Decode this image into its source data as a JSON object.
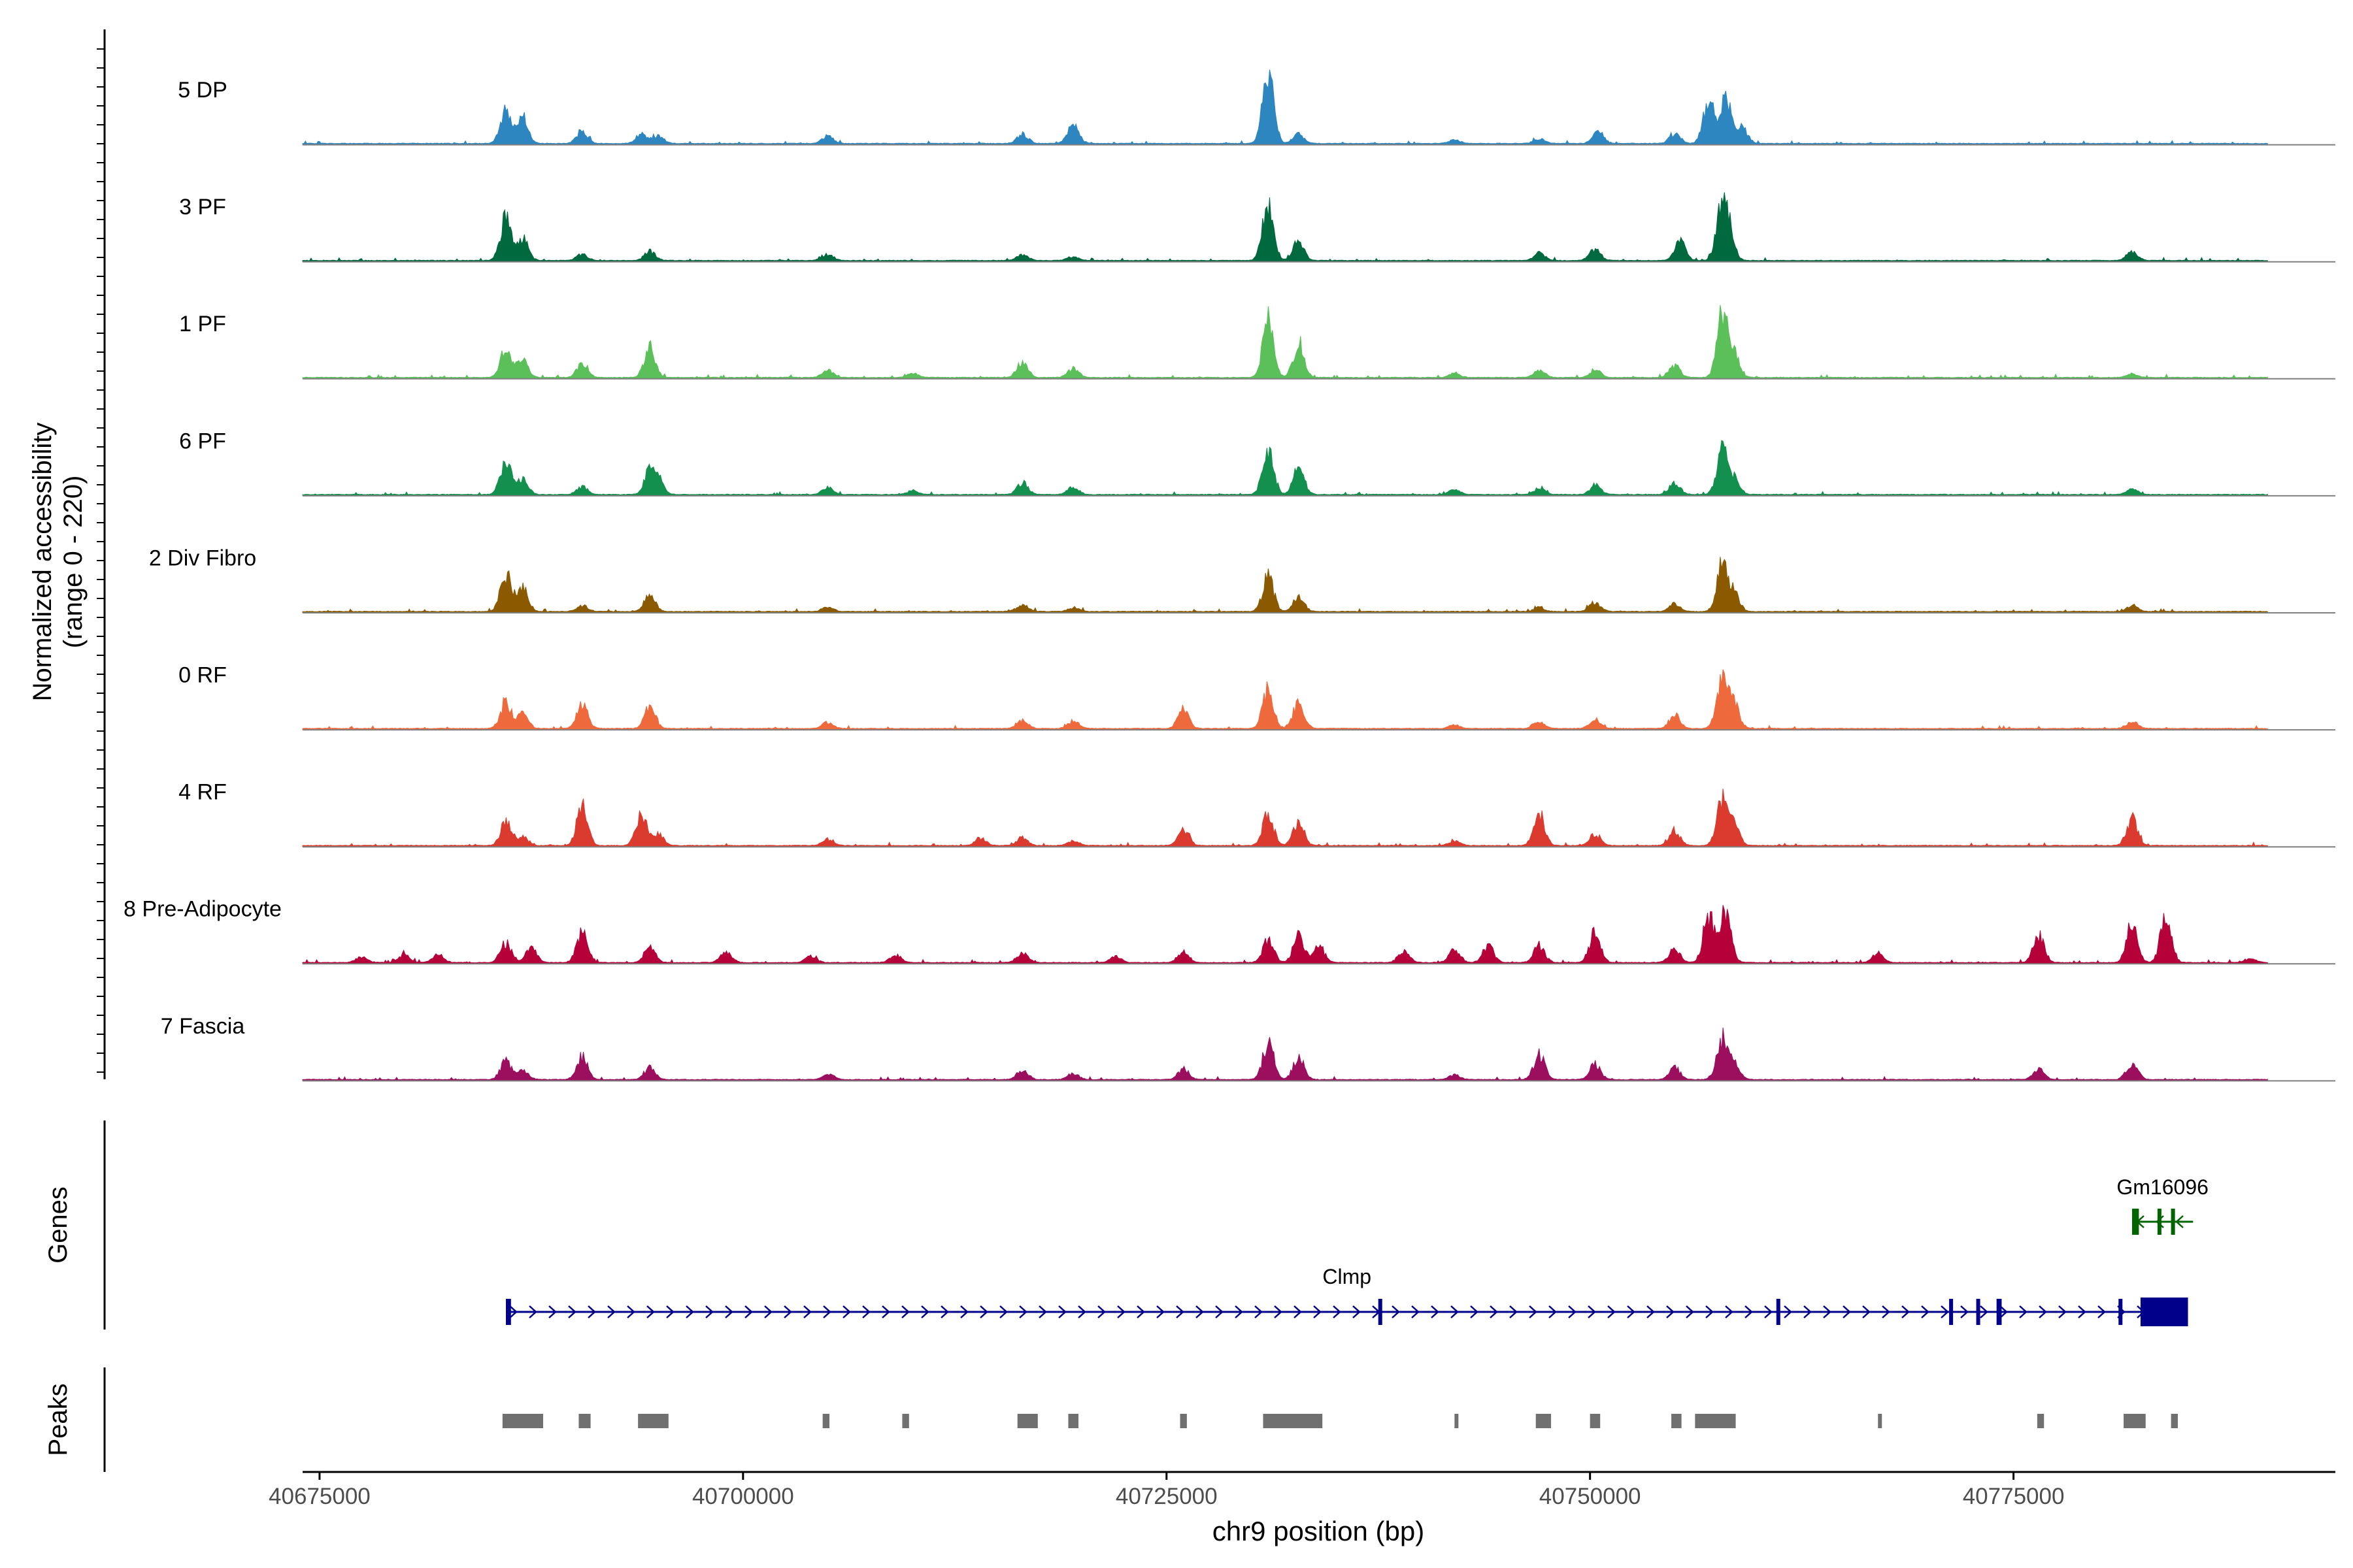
{
  "chart_data": {
    "type": "area",
    "title": "",
    "xlabel": "chr9 position (bp)",
    "ylabel_line1": "Normalized accessibility",
    "ylabel_line2": "(range 0 - 220)",
    "ylim": [
      0,
      220
    ],
    "xlim": [
      40674000,
      40794000
    ],
    "x_ticks": [
      40675000,
      40700000,
      40725000,
      40750000,
      40775000
    ],
    "x_tick_labels": [
      "40675000",
      "40700000",
      "40725000",
      "40750000",
      "40775000"
    ],
    "track_labels": {
      "genes": "Genes",
      "peaks": "Peaks"
    },
    "track_start": 40674000,
    "track_end": 40790000,
    "series": [
      {
        "name": "5 DP",
        "color": "#2E86C1",
        "seed": 11,
        "peaks": [
          [
            40686000,
            0.45
          ],
          [
            40687000,
            0.35
          ],
          [
            40690500,
            0.15
          ],
          [
            40694000,
            0.12
          ],
          [
            40695000,
            0.1
          ],
          [
            40705000,
            0.1
          ],
          [
            40716500,
            0.12
          ],
          [
            40719500,
            0.28
          ],
          [
            40731000,
            1.0
          ],
          [
            40732800,
            0.12
          ],
          [
            40742000,
            0.05
          ],
          [
            40747000,
            0.06
          ],
          [
            40750500,
            0.15
          ],
          [
            40755000,
            0.12
          ],
          [
            40757000,
            0.55
          ],
          [
            40758000,
            0.6
          ],
          [
            40759000,
            0.2
          ]
        ]
      },
      {
        "name": "3 PF",
        "color": "#00693E",
        "seed": 23,
        "peaks": [
          [
            40686000,
            0.55
          ],
          [
            40687000,
            0.3
          ],
          [
            40690500,
            0.08
          ],
          [
            40694500,
            0.12
          ],
          [
            40705000,
            0.08
          ],
          [
            40716500,
            0.08
          ],
          [
            40719500,
            0.05
          ],
          [
            40731000,
            0.75
          ],
          [
            40732800,
            0.25
          ],
          [
            40747000,
            0.1
          ],
          [
            40750300,
            0.15
          ],
          [
            40755300,
            0.25
          ],
          [
            40757800,
            0.7
          ],
          [
            40758200,
            0.3
          ],
          [
            40782000,
            0.12
          ]
        ]
      },
      {
        "name": "1 PF",
        "color": "#5CC05A",
        "seed": 31,
        "peaks": [
          [
            40686000,
            0.4
          ],
          [
            40687000,
            0.22
          ],
          [
            40690500,
            0.18
          ],
          [
            40694500,
            0.4
          ],
          [
            40705000,
            0.1
          ],
          [
            40710000,
            0.06
          ],
          [
            40716500,
            0.2
          ],
          [
            40719500,
            0.12
          ],
          [
            40731000,
            0.75
          ],
          [
            40732800,
            0.45
          ],
          [
            40742000,
            0.05
          ],
          [
            40747000,
            0.1
          ],
          [
            40750300,
            0.1
          ],
          [
            40755000,
            0.15
          ],
          [
            40757800,
            0.8
          ],
          [
            40758500,
            0.3
          ],
          [
            40782000,
            0.05
          ]
        ]
      },
      {
        "name": "6 PF",
        "color": "#14904E",
        "seed": 47,
        "peaks": [
          [
            40686000,
            0.45
          ],
          [
            40687000,
            0.2
          ],
          [
            40690500,
            0.1
          ],
          [
            40694500,
            0.3
          ],
          [
            40695000,
            0.18
          ],
          [
            40705000,
            0.1
          ],
          [
            40710000,
            0.05
          ],
          [
            40716500,
            0.15
          ],
          [
            40719500,
            0.1
          ],
          [
            40731000,
            0.6
          ],
          [
            40732800,
            0.35
          ],
          [
            40742000,
            0.06
          ],
          [
            40747000,
            0.08
          ],
          [
            40750300,
            0.12
          ],
          [
            40755000,
            0.15
          ],
          [
            40757800,
            0.6
          ],
          [
            40758500,
            0.2
          ],
          [
            40782000,
            0.08
          ]
        ]
      },
      {
        "name": "2 Div Fibro",
        "color": "#8B5A00",
        "seed": 53,
        "peaks": [
          [
            40686000,
            0.5
          ],
          [
            40687000,
            0.3
          ],
          [
            40690500,
            0.08
          ],
          [
            40694500,
            0.22
          ],
          [
            40705000,
            0.06
          ],
          [
            40716500,
            0.1
          ],
          [
            40719500,
            0.05
          ],
          [
            40731000,
            0.45
          ],
          [
            40732800,
            0.2
          ],
          [
            40747000,
            0.05
          ],
          [
            40750300,
            0.12
          ],
          [
            40755000,
            0.1
          ],
          [
            40757800,
            0.6
          ],
          [
            40758500,
            0.25
          ],
          [
            40782000,
            0.08
          ]
        ]
      },
      {
        "name": "0 RF",
        "color": "#EE6A3D",
        "seed": 61,
        "peaks": [
          [
            40686000,
            0.35
          ],
          [
            40687000,
            0.18
          ],
          [
            40690500,
            0.32
          ],
          [
            40694500,
            0.28
          ],
          [
            40705000,
            0.08
          ],
          [
            40716500,
            0.12
          ],
          [
            40719500,
            0.1
          ],
          [
            40726000,
            0.25
          ],
          [
            40731000,
            0.5
          ],
          [
            40732800,
            0.35
          ],
          [
            40742000,
            0.05
          ],
          [
            40747000,
            0.08
          ],
          [
            40750300,
            0.12
          ],
          [
            40755000,
            0.18
          ],
          [
            40757800,
            0.7
          ],
          [
            40758500,
            0.3
          ],
          [
            40782000,
            0.1
          ]
        ]
      },
      {
        "name": "4 RF",
        "color": "#DB3A2E",
        "seed": 71,
        "peaks": [
          [
            40686000,
            0.3
          ],
          [
            40687000,
            0.12
          ],
          [
            40690500,
            0.5
          ],
          [
            40694000,
            0.42
          ],
          [
            40695000,
            0.15
          ],
          [
            40705000,
            0.08
          ],
          [
            40714000,
            0.1
          ],
          [
            40716500,
            0.1
          ],
          [
            40719500,
            0.06
          ],
          [
            40726000,
            0.22
          ],
          [
            40731000,
            0.4
          ],
          [
            40732800,
            0.3
          ],
          [
            40742000,
            0.06
          ],
          [
            40747000,
            0.42
          ],
          [
            40750300,
            0.15
          ],
          [
            40755000,
            0.2
          ],
          [
            40757800,
            0.6
          ],
          [
            40758500,
            0.25
          ],
          [
            40782000,
            0.35
          ]
        ]
      },
      {
        "name": "8 Pre-Adipocyte",
        "color": "#B5003A",
        "seed": 83,
        "peaks": [
          [
            40677500,
            0.08
          ],
          [
            40680000,
            0.1
          ],
          [
            40682000,
            0.12
          ],
          [
            40686000,
            0.25
          ],
          [
            40687500,
            0.2
          ],
          [
            40690500,
            0.38
          ],
          [
            40694500,
            0.2
          ],
          [
            40699000,
            0.15
          ],
          [
            40704000,
            0.08
          ],
          [
            40709000,
            0.1
          ],
          [
            40716500,
            0.12
          ],
          [
            40722000,
            0.08
          ],
          [
            40726000,
            0.15
          ],
          [
            40731000,
            0.3
          ],
          [
            40732800,
            0.35
          ],
          [
            40734000,
            0.22
          ],
          [
            40739000,
            0.15
          ],
          [
            40742000,
            0.18
          ],
          [
            40744000,
            0.22
          ],
          [
            40747000,
            0.22
          ],
          [
            40750300,
            0.4
          ],
          [
            40755000,
            0.18
          ],
          [
            40757000,
            0.62
          ],
          [
            40758000,
            0.7
          ],
          [
            40767000,
            0.12
          ],
          [
            40776500,
            0.35
          ],
          [
            40782000,
            0.5
          ],
          [
            40784000,
            0.62
          ],
          [
            40789000,
            0.05
          ]
        ]
      },
      {
        "name": "7 Fascia",
        "color": "#9B0F5E",
        "seed": 97,
        "peaks": [
          [
            40686000,
            0.25
          ],
          [
            40687000,
            0.12
          ],
          [
            40690500,
            0.3
          ],
          [
            40694500,
            0.15
          ],
          [
            40705000,
            0.08
          ],
          [
            40716500,
            0.12
          ],
          [
            40719500,
            0.08
          ],
          [
            40726000,
            0.14
          ],
          [
            40731000,
            0.45
          ],
          [
            40732800,
            0.3
          ],
          [
            40742000,
            0.06
          ],
          [
            40747000,
            0.32
          ],
          [
            40750300,
            0.2
          ],
          [
            40755000,
            0.15
          ],
          [
            40757800,
            0.5
          ],
          [
            40758500,
            0.2
          ],
          [
            40776500,
            0.15
          ],
          [
            40782000,
            0.22
          ]
        ]
      }
    ],
    "genes": [
      {
        "name": "Clmp",
        "color": "#00008B",
        "start": 40686000,
        "end": 40785300,
        "strand": "+",
        "exons": [
          [
            40686000,
            40686300
          ],
          [
            40737500,
            40737600
          ],
          [
            40761000,
            40761200
          ],
          [
            40771200,
            40771350
          ],
          [
            40772800,
            40772900
          ],
          [
            40774000,
            40774300
          ],
          [
            40781200,
            40781350
          ],
          [
            40782500,
            40785300
          ]
        ]
      },
      {
        "name": "Gm16096",
        "color": "#006400",
        "start": 40782000,
        "end": 40785600,
        "strand": "-",
        "exons": [
          [
            40782000,
            40782400
          ],
          [
            40783500,
            40783700
          ],
          [
            40784300,
            40784400
          ]
        ]
      }
    ],
    "peaks_track": {
      "color": "#707070",
      "regions": [
        [
          40685800,
          40688200
        ],
        [
          40690300,
          40691000
        ],
        [
          40693800,
          40695600
        ],
        [
          40704700,
          40705100
        ],
        [
          40709400,
          40709800
        ],
        [
          40716200,
          40717400
        ],
        [
          40719200,
          40719800
        ],
        [
          40725800,
          40726200
        ],
        [
          40730700,
          40734200
        ],
        [
          40742000,
          40742200
        ],
        [
          40746800,
          40747700
        ],
        [
          40750000,
          40750600
        ],
        [
          40754800,
          40755400
        ],
        [
          40756200,
          40758600
        ],
        [
          40767000,
          40767200
        ],
        [
          40776400,
          40776800
        ],
        [
          40781500,
          40782800
        ],
        [
          40784300,
          40784700
        ]
      ]
    }
  }
}
